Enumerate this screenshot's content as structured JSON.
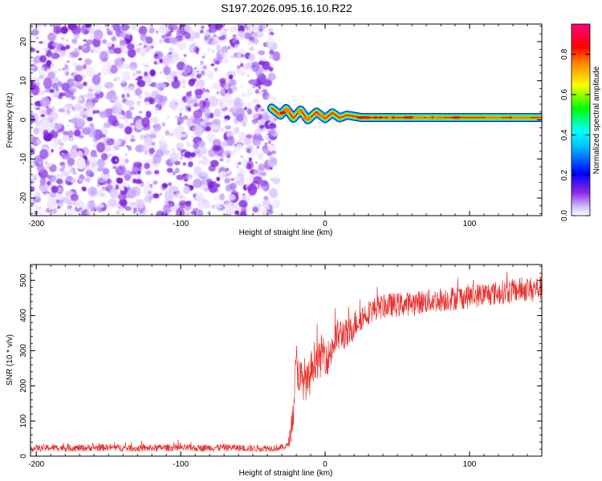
{
  "figure": {
    "title": "S197.2026.095.16.10.R22"
  },
  "chart_data": [
    {
      "type": "heatmap",
      "title": "S197.2026.095.16.10.R22",
      "xlabel": "Height of straight line (km)",
      "ylabel": "Frequency (Hz)",
      "xlim": [
        -204,
        150
      ],
      "ylim": [
        -24.5,
        24.5
      ],
      "xticks": [
        -200,
        -100,
        0,
        100
      ],
      "yticks": [
        -20,
        -10,
        0,
        10,
        20
      ],
      "noise_region_x": [
        -204,
        -37
      ],
      "signal": {
        "x_start": -40,
        "x_end": 150,
        "center_frequency_hz": 0.6,
        "bandwidth_hz": 2.5,
        "wiggle_points": [
          {
            "x": -37,
            "y": 3.0
          },
          {
            "x": -31,
            "y": 1.2
          },
          {
            "x": -27,
            "y": 2.9
          },
          {
            "x": -22,
            "y": 0.4
          },
          {
            "x": -17,
            "y": 2.5
          },
          {
            "x": -12,
            "y": 0.0
          },
          {
            "x": -6,
            "y": 2.0
          },
          {
            "x": 0,
            "y": 0.3
          },
          {
            "x": 5,
            "y": 1.8
          },
          {
            "x": 10,
            "y": 0.5
          },
          {
            "x": 15,
            "y": 1.2
          },
          {
            "x": 25,
            "y": 0.6
          },
          {
            "x": 150,
            "y": 0.6
          }
        ]
      },
      "colorbar": {
        "label": "Normalized spectral amplitude",
        "range": [
          0,
          0.95
        ],
        "ticks": [
          "0.0",
          "0.2",
          "0.4",
          "0.6",
          "0.8"
        ],
        "tick_values": [
          0.0,
          0.2,
          0.4,
          0.6,
          0.8
        ],
        "colormap": [
          "#ffffff",
          "#8a2be2",
          "#0000ff",
          "#00ffff",
          "#00ff00",
          "#ffff00",
          "#ff0000",
          "#ff00ff"
        ],
        "noise_color": "#8a2be2"
      },
      "grid": false
    },
    {
      "type": "line",
      "xlabel": "Height of straight line (km)",
      "ylabel": "SNR (10 * v/v)",
      "xlim": [
        -204,
        150
      ],
      "ylim": [
        0,
        545
      ],
      "xticks": [
        -200,
        -100,
        0,
        100
      ],
      "yticks": [
        0,
        100,
        200,
        300,
        400,
        500
      ],
      "color": "#e8312e",
      "series": [
        {
          "points": [
            [
              -204,
              22
            ],
            [
              -190,
              24
            ],
            [
              -170,
              23
            ],
            [
              -150,
              25
            ],
            [
              -130,
              22
            ],
            [
              -110,
              24
            ],
            [
              -90,
              23
            ],
            [
              -70,
              25
            ],
            [
              -50,
              22
            ],
            [
              -30,
              24
            ],
            [
              -26,
              30
            ],
            [
              -24,
              60
            ],
            [
              -22,
              130
            ],
            [
              -21,
              200
            ],
            [
              -20,
              270
            ],
            [
              -18,
              230
            ],
            [
              -16,
              210
            ],
            [
              -14,
              225
            ],
            [
              -12,
              200
            ],
            [
              -10,
              240
            ],
            [
              -8,
              270
            ],
            [
              -6,
              280
            ],
            [
              -4,
              265
            ],
            [
              -2,
              300
            ],
            [
              0,
              290
            ],
            [
              2,
              280
            ],
            [
              5,
              310
            ],
            [
              8,
              340
            ],
            [
              10,
              345
            ],
            [
              13,
              350
            ],
            [
              16,
              340
            ],
            [
              20,
              375
            ],
            [
              25,
              395
            ],
            [
              30,
              410
            ],
            [
              35,
              420
            ],
            [
              40,
              425
            ],
            [
              45,
              430
            ],
            [
              50,
              430
            ],
            [
              60,
              435
            ],
            [
              70,
              440
            ],
            [
              80,
              445
            ],
            [
              90,
              450
            ],
            [
              100,
              455
            ],
            [
              110,
              460
            ],
            [
              120,
              465
            ],
            [
              130,
              470
            ],
            [
              140,
              475
            ],
            [
              150,
              478
            ]
          ],
          "noise_amplitude": [
            [
              -204,
              10
            ],
            [
              -26,
              10
            ],
            [
              -20,
              60
            ],
            [
              10,
              50
            ],
            [
              30,
              35
            ],
            [
              150,
              35
            ]
          ]
        }
      ],
      "grid": false
    }
  ]
}
